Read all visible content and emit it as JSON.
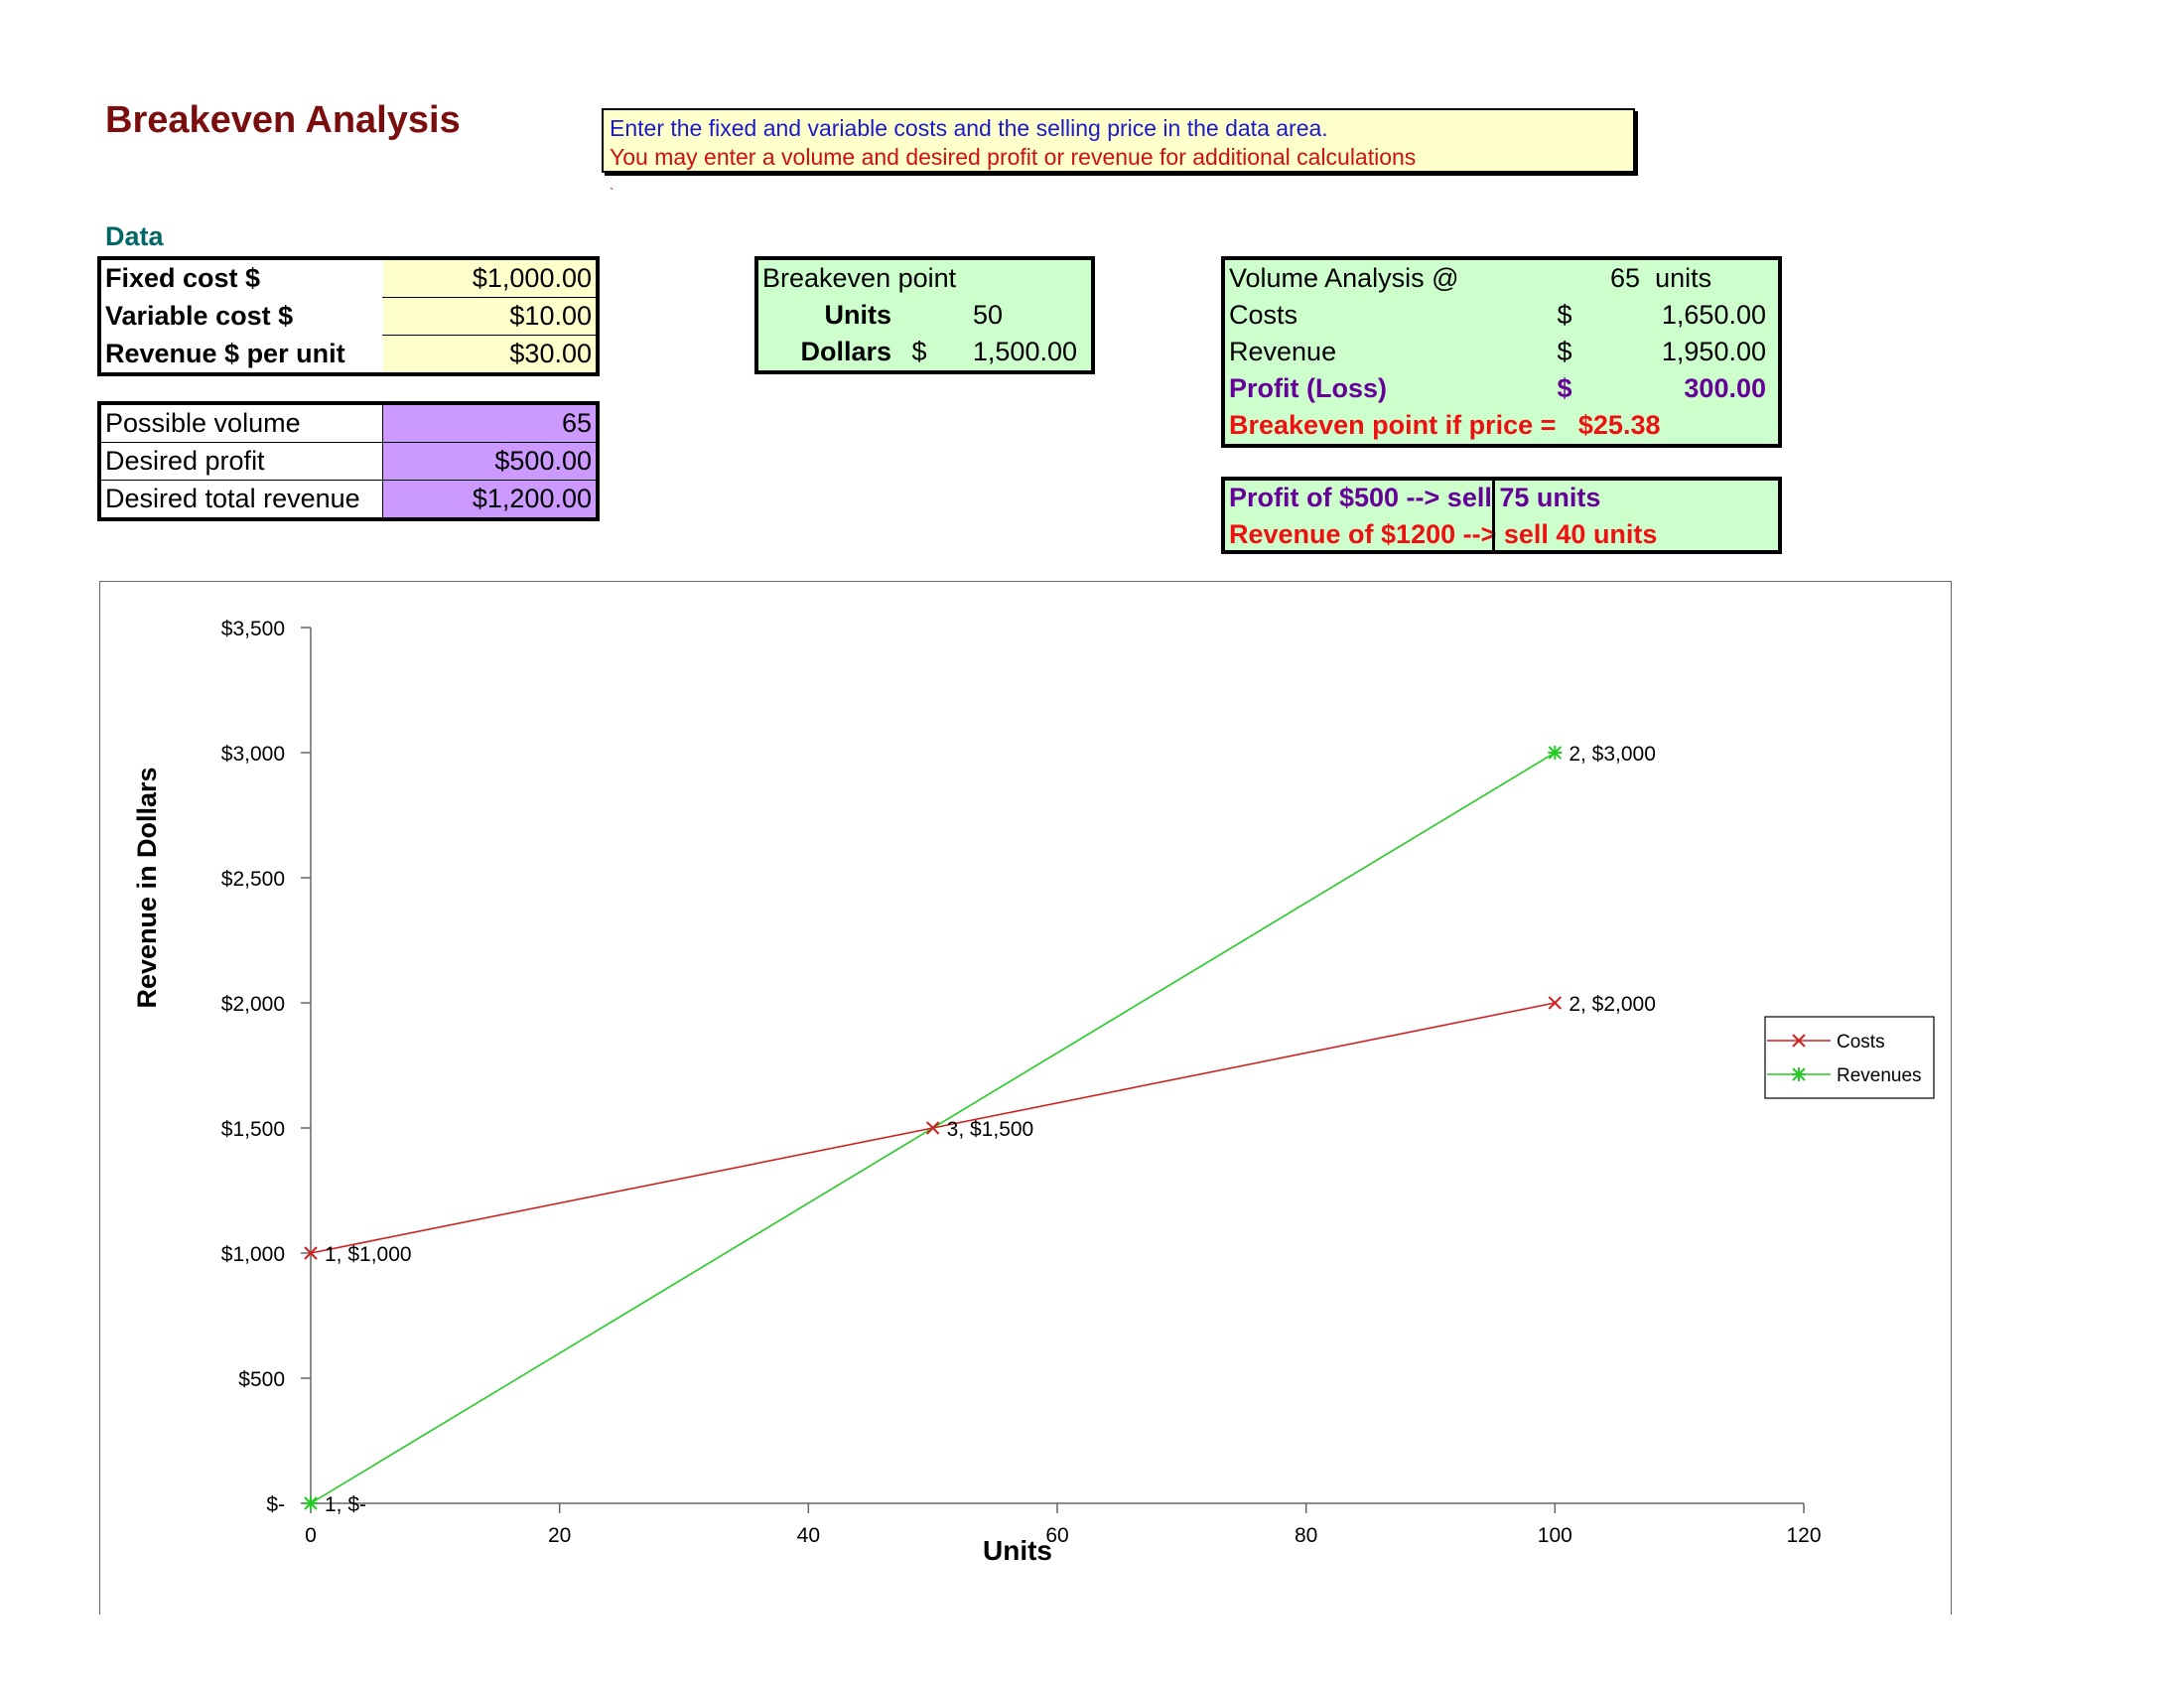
{
  "title": "Breakeven Analysis",
  "note": {
    "line1": "Enter the fixed and variable costs and the selling price in the data area.",
    "line2": "You may enter a volume and desired profit or revenue for additional calculations",
    "mark": "`"
  },
  "data_heading": "Data",
  "inputs": [
    {
      "label": "Fixed cost $",
      "value": "$1,000.00"
    },
    {
      "label": "Variable cost $",
      "value": "$10.00"
    },
    {
      "label": "Revenue $ per unit",
      "value": "$30.00"
    }
  ],
  "extra_inputs": [
    {
      "label": "Possible volume",
      "value": "65"
    },
    {
      "label": "Desired profit",
      "value": "$500.00"
    },
    {
      "label": "Desired total revenue",
      "value": "$1,200.00"
    }
  ],
  "breakeven": {
    "heading": "Breakeven point",
    "units_label": "Units",
    "units_value": "50",
    "dollars_label": "Dollars",
    "dollars_symbol": "$",
    "dollars_value": "1,500.00"
  },
  "volume_analysis": {
    "heading": "Volume Analysis @",
    "volume": "65",
    "units_word": "units",
    "rows": [
      {
        "label": "Costs",
        "symbol": "$",
        "value": "1,650.00"
      },
      {
        "label": "Revenue",
        "symbol": "$",
        "value": "1,950.00"
      },
      {
        "label": "Profit (Loss)",
        "symbol": "$",
        "value": "300.00"
      }
    ],
    "breakeven_label": "Breakeven point if price =",
    "breakeven_value": "$25.38"
  },
  "targets": {
    "profit_line": "Profit of $500  --> sell 75 units",
    "revenue_line": "Revenue of $1200  --> sell 40 units"
  },
  "chart_data": {
    "type": "line",
    "xlabel": "Units",
    "ylabel": "Revenue in Dollars",
    "xlim": [
      0,
      120
    ],
    "ylim": [
      0,
      3500
    ],
    "x_ticks": [
      "0",
      "20",
      "40",
      "60",
      "80",
      "100",
      "120"
    ],
    "y_ticks": [
      "$-",
      "$500",
      "$1,000",
      "$1,500",
      "$2,000",
      "$2,500",
      "$3,000",
      "$3,500"
    ],
    "legend_position": "right",
    "series": [
      {
        "name": "Costs",
        "color": "#cc2222",
        "marker": "x",
        "points": [
          {
            "x": 0,
            "y": 1000,
            "label": "1,  $1,000"
          },
          {
            "x": 50,
            "y": 1500,
            "label": "3,  $1,500"
          },
          {
            "x": 100,
            "y": 2000,
            "label": "2,  $2,000"
          }
        ]
      },
      {
        "name": "Revenues",
        "color": "#22cc22",
        "marker": "star",
        "points": [
          {
            "x": 0,
            "y": 0,
            "label": "1,  $-"
          },
          {
            "x": 100,
            "y": 3000,
            "label": "2,  $3,000"
          }
        ]
      }
    ]
  }
}
